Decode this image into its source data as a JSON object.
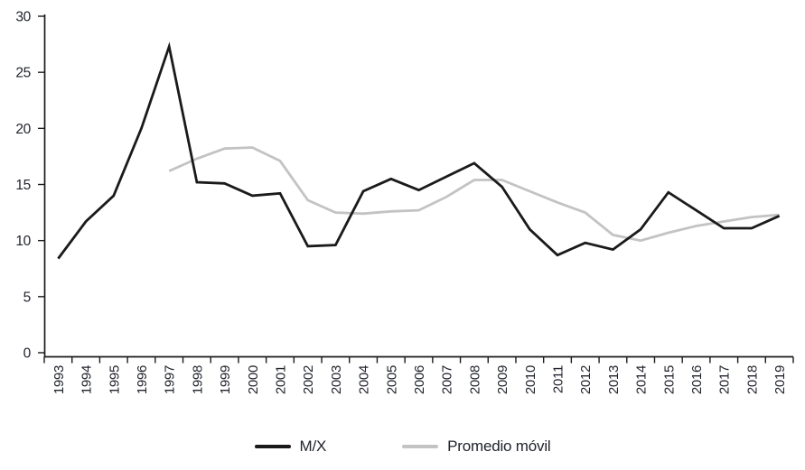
{
  "chart_data": {
    "type": "line",
    "title": "",
    "xlabel": "",
    "ylabel": "",
    "categories": [
      "1993",
      "1994",
      "1995",
      "1996",
      "1997",
      "1998",
      "1999",
      "2000",
      "2001",
      "2002",
      "2003",
      "2004",
      "2005",
      "2006",
      "2007",
      "2008",
      "2009",
      "2010",
      "2011",
      "2012",
      "2013",
      "2014",
      "2015",
      "2016",
      "2017",
      "2018",
      "2019"
    ],
    "series": [
      {
        "name": "M/X",
        "color": "#1a1a1a",
        "values": [
          8.4,
          11.7,
          14.0,
          20.0,
          27.3,
          15.2,
          15.1,
          14.0,
          14.2,
          9.5,
          9.6,
          14.4,
          15.5,
          14.5,
          15.7,
          16.9,
          14.8,
          11.0,
          8.7,
          9.8,
          9.2,
          11.0,
          14.3,
          12.7,
          11.1,
          11.1,
          12.2
        ]
      },
      {
        "name": "Promedio móvil",
        "color": "#c3c3c3",
        "values": [
          null,
          null,
          null,
          null,
          16.2,
          17.3,
          18.2,
          18.3,
          17.1,
          13.6,
          12.5,
          12.4,
          12.6,
          12.7,
          13.9,
          15.4,
          15.4,
          14.4,
          13.4,
          12.5,
          10.5,
          10.0,
          10.7,
          11.3,
          11.7,
          12.1,
          12.3
        ]
      }
    ],
    "ylim": [
      0,
      30
    ],
    "yticks": [
      0,
      5,
      10,
      15,
      20,
      25,
      30
    ],
    "grid": false,
    "legend_position": "bottom",
    "axis_color": "#1a1a1a",
    "tick_label_color": "#21242c",
    "line_width": 2.8
  }
}
